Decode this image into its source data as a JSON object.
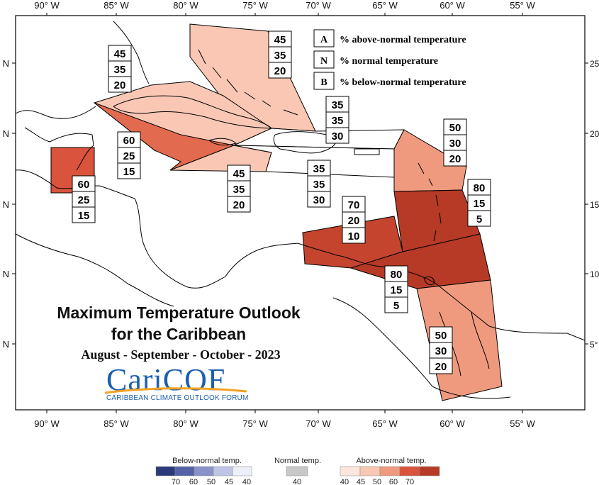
{
  "axes": {
    "lon_labels": [
      "90° W",
      "85° W",
      "80° W",
      "75° W",
      "70° W",
      "65° W",
      "60° W",
      "55° W"
    ],
    "lat_labels_left": [
      "N",
      "N",
      "N",
      "N",
      "N"
    ],
    "lat_labels_right": [
      "25°",
      "20°",
      "15°",
      "10°",
      "5°"
    ]
  },
  "title": {
    "line1": "Maximum Temperature Outlook",
    "line2": "for the Caribbean",
    "period": "August - September - October - 2023"
  },
  "logo": {
    "name": "CariCOF",
    "tagline": "CARIBBEAN CLIMATE OUTLOOK FORUM"
  },
  "key": [
    {
      "letter": "A",
      "text": "% above-normal temperature"
    },
    {
      "letter": "N",
      "text": "% normal temperature"
    },
    {
      "letter": "B",
      "text": "% below-normal temperature"
    }
  ],
  "regions": [
    {
      "id": "bahamas",
      "probs": [
        "45",
        "35",
        "20"
      ],
      "fill": "#f9c7b4"
    },
    {
      "id": "cuba",
      "probs": [
        "45",
        "35",
        "20"
      ],
      "fill": "#f9c7b4"
    },
    {
      "id": "cayman-west-cuba",
      "probs": [
        "60",
        "25",
        "15"
      ],
      "fill": "#e26a4e"
    },
    {
      "id": "belize",
      "probs": [
        "60",
        "25",
        "15"
      ],
      "fill": "#d9533d"
    },
    {
      "id": "jamaica-south",
      "probs": [
        "45",
        "35",
        "20"
      ],
      "fill": "#f9c7b4"
    },
    {
      "id": "turks-caicos",
      "probs": [
        "35",
        "35",
        "30"
      ],
      "fill": "#ffffff"
    },
    {
      "id": "hispaniola-pr",
      "probs": [
        "35",
        "35",
        "30"
      ],
      "fill": "#ffffff"
    },
    {
      "id": "leeward-islands",
      "probs": [
        "50",
        "30",
        "20"
      ],
      "fill": "#ef9a7f"
    },
    {
      "id": "windward-islands",
      "probs": [
        "80",
        "15",
        "5"
      ],
      "fill": "#b63a25"
    },
    {
      "id": "abc-islands",
      "probs": [
        "70",
        "20",
        "10"
      ],
      "fill": "#c4442e"
    },
    {
      "id": "trinidad-venezuela",
      "probs": [
        "80",
        "15",
        "5"
      ],
      "fill": "#b63a25"
    },
    {
      "id": "guianas",
      "probs": [
        "50",
        "30",
        "20"
      ],
      "fill": "#ef9a7f"
    }
  ],
  "colorbar": {
    "below": {
      "title": "Below-normal temp.",
      "ticks": [
        "70",
        "60",
        "50",
        "45",
        "40"
      ],
      "colors": [
        "#2b3a78",
        "#5562a8",
        "#8b92c8",
        "#c0c4e4",
        "#eef0f9"
      ]
    },
    "normal": {
      "title": "Normal temp.",
      "ticks": [
        "40"
      ],
      "colors": [
        "#c8c8c8"
      ]
    },
    "above": {
      "title": "Above-normal temp.",
      "ticks": [
        "40",
        "45",
        "50",
        "60",
        "70"
      ],
      "colors": [
        "#fde6dc",
        "#f9c7b4",
        "#ef9a7f",
        "#d9533d",
        "#b63a25"
      ]
    }
  }
}
